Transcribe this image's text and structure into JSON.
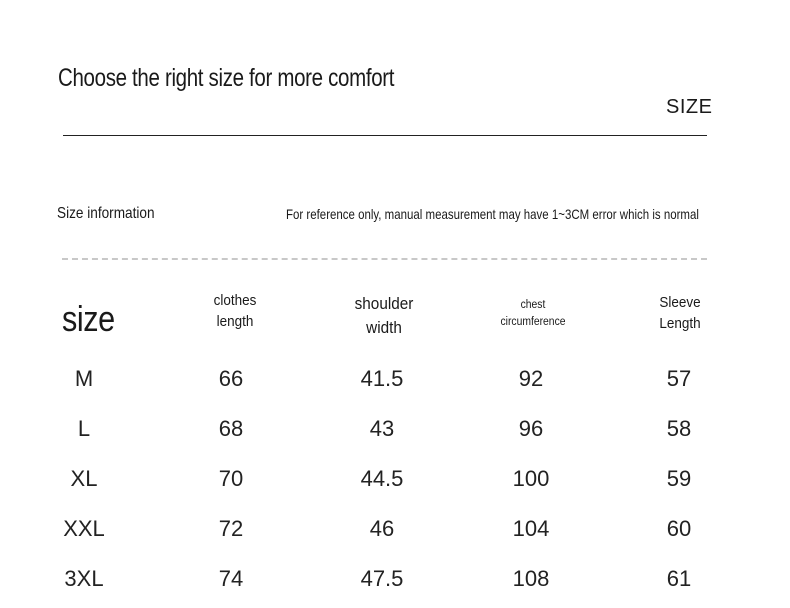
{
  "title": "Choose the right size for more comfort",
  "size_label": "SIZE",
  "info_label": "Size information",
  "info_note": "For reference only, manual measurement may have 1~3CM error which is normal",
  "table": {
    "size_header": "size",
    "headers": [
      {
        "line1": "clothes",
        "line2": "length"
      },
      {
        "line1": "shoulder",
        "line2": "width"
      },
      {
        "line1": "chest",
        "line2": "circumference"
      },
      {
        "line1": "Sleeve",
        "line2": "Length"
      }
    ],
    "rows": [
      {
        "size": "M",
        "values": [
          "66",
          "41.5",
          "92",
          "57"
        ]
      },
      {
        "size": "L",
        "values": [
          "68",
          "43",
          "96",
          "58"
        ]
      },
      {
        "size": "XL",
        "values": [
          "70",
          "44.5",
          "100",
          "59"
        ]
      },
      {
        "size": "XXL",
        "values": [
          "72",
          "46",
          "104",
          "60"
        ]
      },
      {
        "size": "3XL",
        "values": [
          "74",
          "47.5",
          "108",
          "61"
        ]
      }
    ]
  }
}
